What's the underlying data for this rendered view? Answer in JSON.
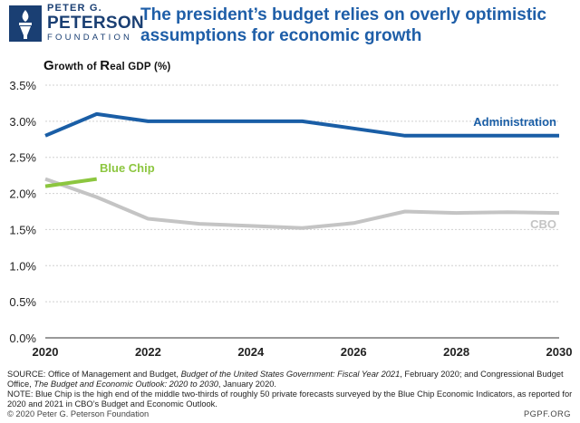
{
  "header": {
    "logo": {
      "line1": "PETER G.",
      "line2": "PETERSON",
      "line3": "FOUNDATION"
    },
    "title": "The president’s budget relies on overly optimistic assumptions for economic growth"
  },
  "chart_title": {
    "first_letter": "G",
    "rest": "rowth of ",
    "second_letter": "R",
    "rest2": "eal GDP (%)"
  },
  "chart_data": {
    "type": "line",
    "title": "Growth of Real GDP (%)",
    "xlabel": "",
    "ylabel": "Growth of Real GDP (%)",
    "xlim": [
      2020,
      2030
    ],
    "ylim": [
      0,
      3.5
    ],
    "x_ticks": [
      "2020",
      "2022",
      "2024",
      "2026",
      "2028",
      "2030"
    ],
    "x_tick_values": [
      2020,
      2022,
      2024,
      2026,
      2028,
      2030
    ],
    "y_ticks": [
      "0.0%",
      "0.5%",
      "1.0%",
      "1.5%",
      "2.0%",
      "2.5%",
      "3.0%",
      "3.5%"
    ],
    "y_tick_values": [
      0,
      0.5,
      1.0,
      1.5,
      2.0,
      2.5,
      3.0,
      3.5
    ],
    "series": [
      {
        "name": "Administration",
        "color": "#1a5ea6",
        "x": [
          2020,
          2021,
          2022,
          2023,
          2024,
          2025,
          2026,
          2027,
          2028,
          2029,
          2030
        ],
        "values": [
          2.8,
          3.1,
          3.0,
          3.0,
          3.0,
          3.0,
          2.9,
          2.8,
          2.8,
          2.8,
          2.8
        ]
      },
      {
        "name": "CBO",
        "color": "#c4c4c4",
        "x": [
          2020,
          2021,
          2022,
          2023,
          2024,
          2025,
          2026,
          2027,
          2028,
          2029,
          2030
        ],
        "values": [
          2.2,
          1.95,
          1.65,
          1.58,
          1.55,
          1.52,
          1.59,
          1.75,
          1.73,
          1.74,
          1.73
        ]
      },
      {
        "name": "Blue Chip",
        "color": "#8cc63f",
        "x": [
          2020,
          2021
        ],
        "values": [
          2.1,
          2.2
        ]
      }
    ]
  },
  "footer": {
    "source_prefix": "SOURCE: Office of Management and Budget, ",
    "source_italic1": "Budget of the United States Government: Fiscal Year 2021",
    "source_mid": ", February 2020; and Congressional Budget Office, ",
    "source_italic2": "The Budget and Economic Outlook: 2020 to 2030",
    "source_suffix": ", January 2020.",
    "note": "NOTE: Blue Chip is the high end of the middle two-thirds of roughly 50 private forecasts surveyed by the Blue Chip Economic Indicators, as reported for 2020 and 2021 in CBO’s Budget and Economic Outlook.",
    "copyright": "© 2020 Peter G. Peterson Foundation",
    "url": "PGPF.ORG"
  }
}
